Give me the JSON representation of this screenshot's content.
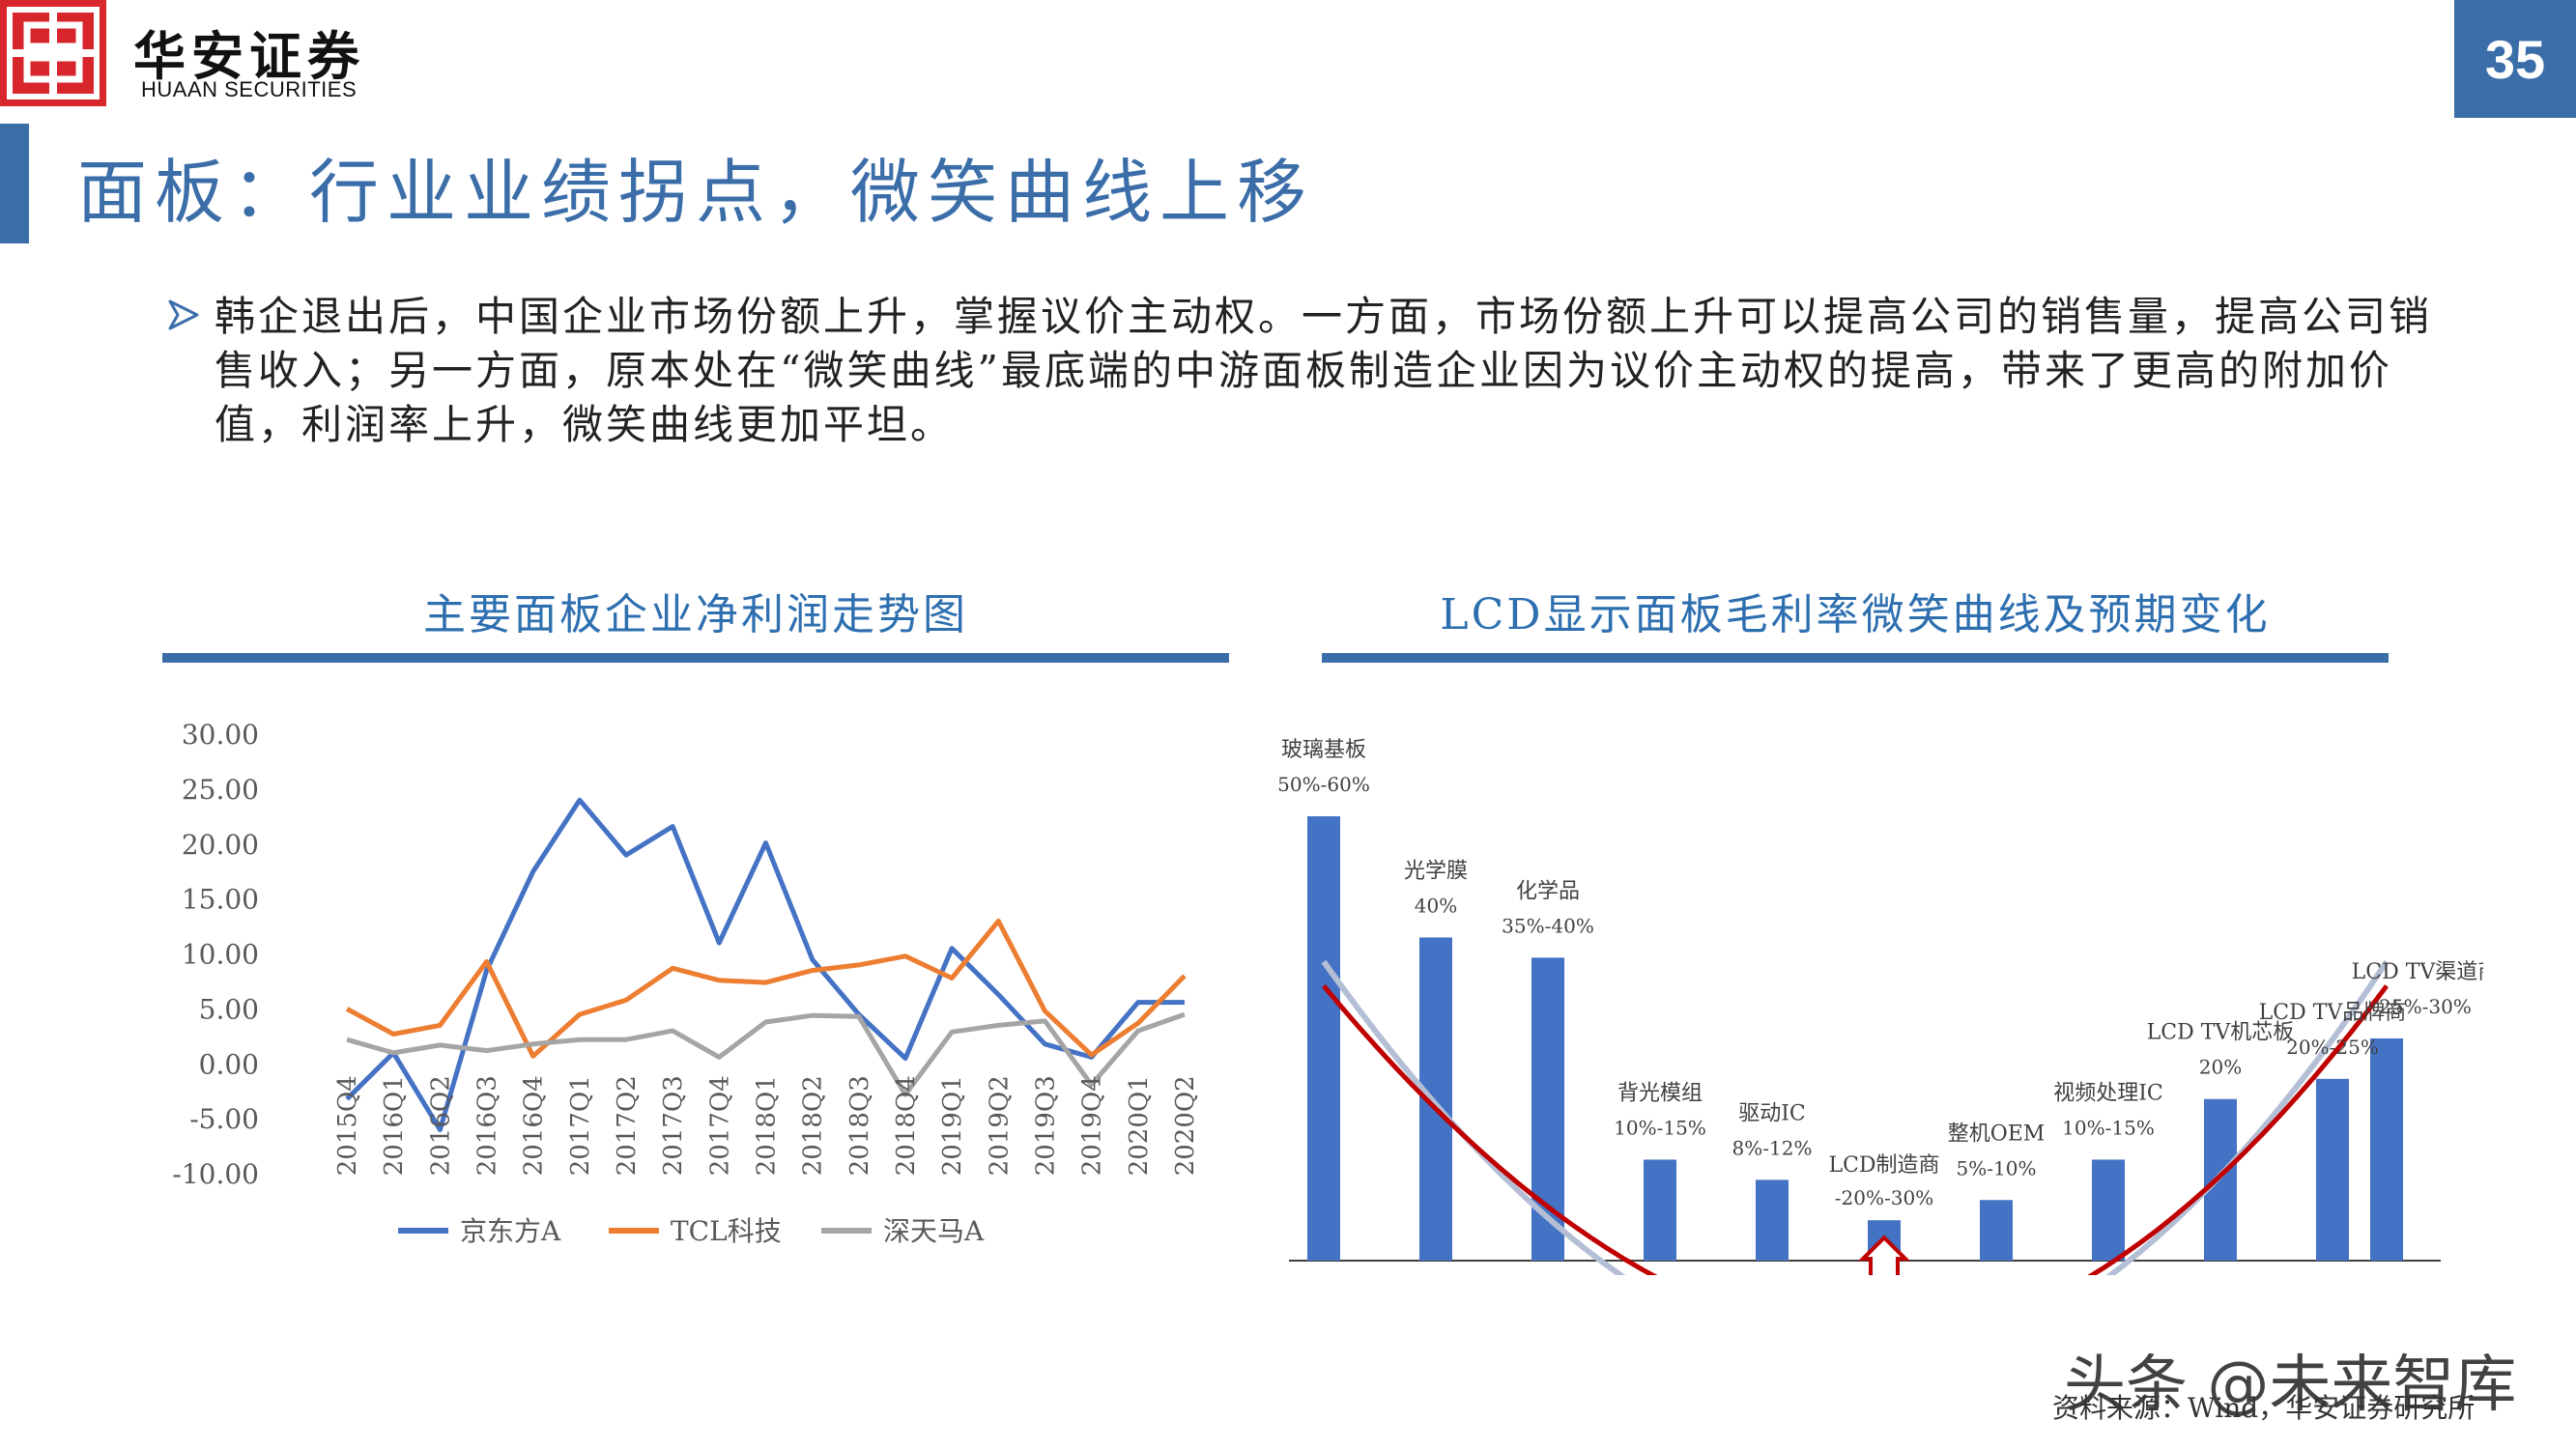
{
  "header": {
    "brand_cn": "华安证券",
    "brand_en": "HUAAN SECURITIES",
    "page_number": "35",
    "accent_color": "#3b6ea9"
  },
  "title": "面板：行业业绩拐点，微笑曲线上移",
  "bullet": "韩企退出后，中国企业市场份额上升，掌握议价主动权。一方面，市场份额上升可以提高公司的销售量，提高公司销售收入；另一方面，原本处在“微笑曲线”最底端的中游面板制造企业因为议价主动权的提高，带来了更高的附加价值，利润率上升，微笑曲线更加平坦。",
  "chart_data": [
    {
      "type": "line",
      "title": "主要面板企业净利润走势图",
      "categories": [
        "2015Q4",
        "2016Q1",
        "2016Q2",
        "2016Q3",
        "2016Q4",
        "2017Q1",
        "2017Q2",
        "2017Q3",
        "2017Q4",
        "2018Q1",
        "2018Q2",
        "2018Q3",
        "2018Q4",
        "2019Q1",
        "2019Q2",
        "2019Q3",
        "2019Q4",
        "2020Q1",
        "2020Q2"
      ],
      "y_ticks": [
        "30.00",
        "25.00",
        "20.00",
        "15.00",
        "10.00",
        "5.00",
        "0.00",
        "-5.00",
        "-10.00"
      ],
      "ylim": [
        -10,
        30
      ],
      "legend_position": "bottom",
      "series": [
        {
          "name": "京东方A",
          "color": "#4472c4",
          "values": [
            -3.2,
            1.0,
            -6.0,
            8.5,
            17.5,
            24.0,
            19.0,
            21.6,
            11.0,
            20.1,
            9.5,
            4.5,
            0.5,
            10.5,
            6.3,
            1.8,
            0.6,
            5.6,
            5.6
          ]
        },
        {
          "name": "TCL科技",
          "color": "#ed7d31",
          "values": [
            5.0,
            2.7,
            3.5,
            9.3,
            0.7,
            4.5,
            5.8,
            8.7,
            7.6,
            7.4,
            8.5,
            9.0,
            9.8,
            7.8,
            13.0,
            4.8,
            0.8,
            3.7,
            8.0
          ]
        },
        {
          "name": "深天马A",
          "color": "#a5a5a5",
          "values": [
            2.2,
            1.0,
            1.7,
            1.2,
            1.8,
            2.2,
            2.2,
            3.0,
            0.6,
            3.8,
            4.4,
            4.3,
            -2.8,
            2.9,
            3.5,
            3.9,
            -1.9,
            3.0,
            4.5
          ]
        }
      ]
    },
    {
      "type": "bar",
      "title": "LCD显示面板毛利率微笑曲线及预期变化",
      "categories": [
        "玻璃基板",
        "光学膜",
        "化学品",
        "背光模组",
        "驱动IC",
        "LCD制造商",
        "整机OEM",
        "视频处理IC",
        "LCD TV机芯板",
        "LCD TV品牌商",
        "LCD TV渠道商"
      ],
      "ranges": [
        "50%-60%",
        "40%",
        "35%-40%",
        "10%-15%",
        "8%-12%",
        "-20%-30%",
        "5%-10%",
        "10%-15%",
        "20%",
        "20%-25%",
        "25%-30%"
      ],
      "values": [
        55,
        40,
        37.5,
        12.5,
        10,
        5,
        7.5,
        12.5,
        20,
        22.5,
        27.5
      ],
      "bar_color": "#4472c4",
      "curves": [
        {
          "label": "预期曲线",
          "color": "#c00000"
        },
        {
          "label": "原曲线",
          "color": "#b4bfd6"
        }
      ]
    }
  ],
  "source": "资料来源：Wind，华安证券研究所",
  "watermark": "头条 @未来智库"
}
